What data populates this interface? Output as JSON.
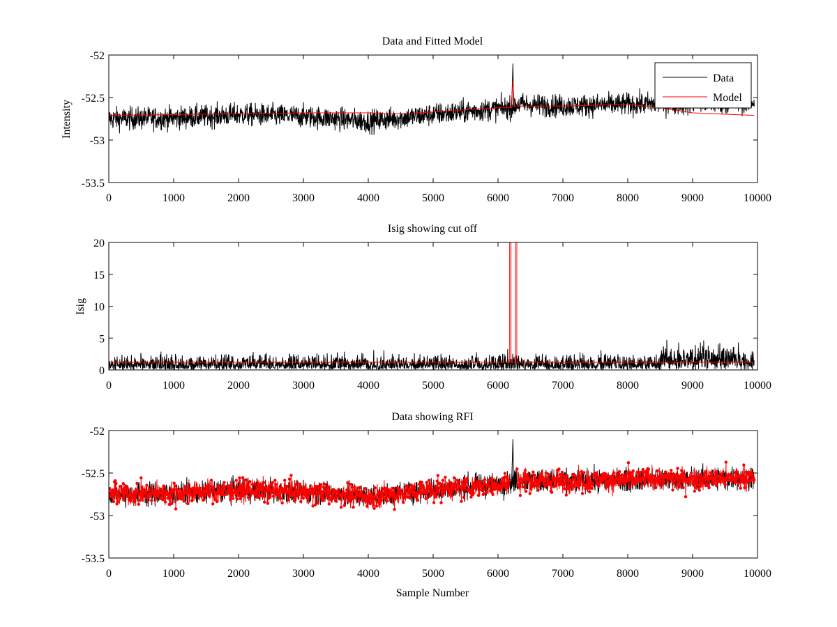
{
  "chart_data": [
    {
      "type": "line",
      "title": "Data and Fitted Model",
      "xlabel": "",
      "ylabel": "Intensity",
      "xlim": [
        0,
        10000
      ],
      "ylim": [
        -53.5,
        -52
      ],
      "xticks": [
        "0",
        "1000",
        "2000",
        "3000",
        "4000",
        "5000",
        "6000",
        "7000",
        "8000",
        "9000",
        "10000"
      ],
      "yticks": [
        "-52",
        "-52.5",
        "-53",
        "-53.5"
      ],
      "grid": false,
      "legend": "top-right",
      "series": [
        {
          "name": "Data",
          "color": "#000000",
          "description": "noisy signal",
          "trend_x": [
            0,
            1000,
            2000,
            3000,
            4000,
            5000,
            6000,
            6200,
            6300,
            7000,
            8000,
            9000,
            9950
          ],
          "trend_y": [
            -52.75,
            -52.74,
            -52.7,
            -52.72,
            -52.78,
            -52.7,
            -52.63,
            -52.62,
            -52.58,
            -52.6,
            -52.58,
            -52.57,
            -52.55
          ],
          "noise_amplitude": 0.12,
          "spikes": [
            {
              "x": 6230,
              "y": -52.1
            }
          ]
        },
        {
          "name": "Model",
          "color": "#ff0000",
          "x": [
            0,
            1000,
            2000,
            3000,
            4000,
            4500,
            5000,
            6000,
            6200,
            6230,
            6250,
            7000,
            8000,
            8500,
            9000,
            9950
          ],
          "y": [
            -52.71,
            -52.7,
            -52.69,
            -52.68,
            -52.68,
            -52.69,
            -52.67,
            -52.62,
            -52.62,
            -52.3,
            -52.6,
            -52.6,
            -52.58,
            -52.62,
            -52.68,
            -52.71
          ]
        }
      ]
    },
    {
      "type": "line",
      "title": "Isig showing cut off",
      "xlabel": "",
      "ylabel": "Isig",
      "xlim": [
        0,
        10000
      ],
      "ylim": [
        0,
        20
      ],
      "xticks": [
        "0",
        "1000",
        "2000",
        "3000",
        "4000",
        "5000",
        "6000",
        "7000",
        "8000",
        "9000",
        "10000"
      ],
      "yticks": [
        "0",
        "5",
        "10",
        "15",
        "20"
      ],
      "grid": false,
      "series": [
        {
          "color": "#000000",
          "description": "noisy Isig",
          "trend_x": [
            0,
            3000,
            4000,
            5000,
            8500,
            9000,
            9950
          ],
          "trend_y": [
            0.8,
            0.9,
            1.0,
            0.9,
            0.9,
            1.4,
            1.5
          ],
          "noise_amplitude": 1.2
        },
        {
          "color": "#ff0000",
          "description": "cut off",
          "x": [
            0,
            6180,
            6180,
            6200,
            6200,
            6270,
            6270,
            6290,
            6290,
            9950
          ],
          "y": [
            1.2,
            1.2,
            20,
            20,
            1.2,
            1.2,
            20,
            20,
            1.2,
            1.2
          ]
        }
      ]
    },
    {
      "type": "line",
      "title": "Data showing RFI",
      "xlabel": "Sample Number",
      "ylabel": "",
      "xlim": [
        0,
        10000
      ],
      "ylim": [
        -53.5,
        -52
      ],
      "xticks": [
        "0",
        "1000",
        "2000",
        "3000",
        "4000",
        "5000",
        "6000",
        "7000",
        "8000",
        "9000",
        "10000"
      ],
      "yticks": [
        "-52",
        "-52.5",
        "-53",
        "-53.5"
      ],
      "grid": false,
      "series": [
        {
          "color": "#000000",
          "description": "data",
          "trend_x": [
            0,
            1000,
            2000,
            3000,
            4000,
            5000,
            6000,
            6200,
            6300,
            7000,
            8000,
            9000,
            9950
          ],
          "trend_y": [
            -52.75,
            -52.74,
            -52.7,
            -52.72,
            -52.78,
            -52.7,
            -52.63,
            -52.62,
            -52.58,
            -52.6,
            -52.58,
            -52.57,
            -52.55
          ],
          "noise_amplitude": 0.12,
          "spikes": [
            {
              "x": 6230,
              "y": -52.1
            }
          ]
        },
        {
          "color": "#ff0000",
          "description": "data with marker points, RFI region excluded",
          "marker": "dot",
          "excluded_x_range": [
            6180,
            6290
          ],
          "trend_x": [
            0,
            1000,
            2000,
            3000,
            4000,
            5000,
            6000,
            6200,
            6300,
            7000,
            8000,
            9000,
            9950
          ],
          "trend_y": [
            -52.75,
            -52.74,
            -52.7,
            -52.72,
            -52.78,
            -52.7,
            -52.63,
            -52.62,
            -52.58,
            -52.6,
            -52.58,
            -52.57,
            -52.55
          ],
          "noise_amplitude": 0.12
        }
      ]
    }
  ]
}
